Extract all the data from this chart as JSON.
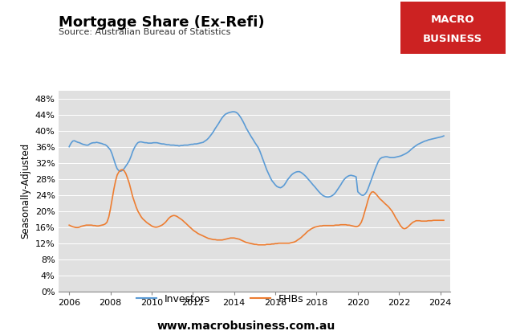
{
  "title": "Mortgage Share (Ex-Refi)",
  "source": "Source: Australian Bureau of Statistics",
  "ylabel": "Seasonally-Adjusted",
  "website": "www.macrobusiness.com.au",
  "xlim": [
    2005.5,
    2024.5
  ],
  "ylim": [
    0,
    0.5
  ],
  "yticks": [
    0,
    0.04,
    0.08,
    0.12,
    0.16,
    0.2,
    0.24,
    0.28,
    0.32,
    0.36,
    0.4,
    0.44,
    0.48
  ],
  "xticks": [
    2006,
    2008,
    2010,
    2012,
    2014,
    2016,
    2018,
    2020,
    2022,
    2024
  ],
  "investor_color": "#5B9BD5",
  "fhb_color": "#ED7D31",
  "background_color": "#E0E0E0",
  "macro_bg": "#CC2222",
  "investors": {
    "dates": [
      2006.0,
      2006.08,
      2006.17,
      2006.25,
      2006.33,
      2006.42,
      2006.5,
      2006.58,
      2006.67,
      2006.75,
      2006.83,
      2006.92,
      2007.0,
      2007.08,
      2007.17,
      2007.25,
      2007.33,
      2007.42,
      2007.5,
      2007.58,
      2007.67,
      2007.75,
      2007.83,
      2007.92,
      2008.0,
      2008.08,
      2008.17,
      2008.25,
      2008.33,
      2008.42,
      2008.5,
      2008.58,
      2008.67,
      2008.75,
      2008.83,
      2008.92,
      2009.0,
      2009.08,
      2009.17,
      2009.25,
      2009.33,
      2009.42,
      2009.5,
      2009.58,
      2009.67,
      2009.75,
      2009.83,
      2009.92,
      2010.0,
      2010.08,
      2010.17,
      2010.25,
      2010.33,
      2010.42,
      2010.5,
      2010.58,
      2010.67,
      2010.75,
      2010.83,
      2010.92,
      2011.0,
      2011.08,
      2011.17,
      2011.25,
      2011.33,
      2011.42,
      2011.5,
      2011.58,
      2011.67,
      2011.75,
      2011.83,
      2011.92,
      2012.0,
      2012.08,
      2012.17,
      2012.25,
      2012.33,
      2012.42,
      2012.5,
      2012.58,
      2012.67,
      2012.75,
      2012.83,
      2012.92,
      2013.0,
      2013.08,
      2013.17,
      2013.25,
      2013.33,
      2013.42,
      2013.5,
      2013.58,
      2013.67,
      2013.75,
      2013.83,
      2013.92,
      2014.0,
      2014.08,
      2014.17,
      2014.25,
      2014.33,
      2014.42,
      2014.5,
      2014.58,
      2014.67,
      2014.75,
      2014.83,
      2014.92,
      2015.0,
      2015.08,
      2015.17,
      2015.25,
      2015.33,
      2015.42,
      2015.5,
      2015.58,
      2015.67,
      2015.75,
      2015.83,
      2015.92,
      2016.0,
      2016.08,
      2016.17,
      2016.25,
      2016.33,
      2016.42,
      2016.5,
      2016.58,
      2016.67,
      2016.75,
      2016.83,
      2016.92,
      2017.0,
      2017.08,
      2017.17,
      2017.25,
      2017.33,
      2017.42,
      2017.5,
      2017.58,
      2017.67,
      2017.75,
      2017.83,
      2017.92,
      2018.0,
      2018.08,
      2018.17,
      2018.25,
      2018.33,
      2018.42,
      2018.5,
      2018.58,
      2018.67,
      2018.75,
      2018.83,
      2018.92,
      2019.0,
      2019.08,
      2019.17,
      2019.25,
      2019.33,
      2019.42,
      2019.5,
      2019.58,
      2019.67,
      2019.75,
      2019.83,
      2019.92,
      2020.0,
      2020.08,
      2020.17,
      2020.25,
      2020.33,
      2020.42,
      2020.5,
      2020.58,
      2020.67,
      2020.75,
      2020.83,
      2020.92,
      2021.0,
      2021.08,
      2021.17,
      2021.25,
      2021.33,
      2021.42,
      2021.5,
      2021.58,
      2021.67,
      2021.75,
      2021.83,
      2021.92,
      2022.0,
      2022.08,
      2022.17,
      2022.25,
      2022.33,
      2022.42,
      2022.5,
      2022.58,
      2022.67,
      2022.75,
      2022.83,
      2022.92,
      2023.0,
      2023.08,
      2023.17,
      2023.25,
      2023.33,
      2023.42,
      2023.5,
      2023.58,
      2023.67,
      2023.75,
      2023.83,
      2023.92,
      2024.0,
      2024.08,
      2024.17
    ],
    "values": [
      0.36,
      0.368,
      0.374,
      0.375,
      0.373,
      0.371,
      0.37,
      0.368,
      0.366,
      0.365,
      0.364,
      0.364,
      0.367,
      0.369,
      0.37,
      0.37,
      0.371,
      0.37,
      0.369,
      0.368,
      0.366,
      0.365,
      0.362,
      0.357,
      0.352,
      0.342,
      0.328,
      0.315,
      0.305,
      0.3,
      0.299,
      0.301,
      0.306,
      0.312,
      0.318,
      0.326,
      0.336,
      0.348,
      0.358,
      0.365,
      0.37,
      0.372,
      0.372,
      0.371,
      0.37,
      0.37,
      0.369,
      0.369,
      0.369,
      0.37,
      0.37,
      0.37,
      0.369,
      0.368,
      0.367,
      0.367,
      0.366,
      0.365,
      0.365,
      0.364,
      0.364,
      0.364,
      0.363,
      0.363,
      0.362,
      0.363,
      0.363,
      0.364,
      0.364,
      0.364,
      0.365,
      0.366,
      0.366,
      0.367,
      0.367,
      0.368,
      0.369,
      0.37,
      0.371,
      0.374,
      0.377,
      0.381,
      0.386,
      0.392,
      0.398,
      0.405,
      0.412,
      0.418,
      0.425,
      0.432,
      0.437,
      0.441,
      0.443,
      0.445,
      0.446,
      0.447,
      0.447,
      0.446,
      0.443,
      0.438,
      0.432,
      0.424,
      0.416,
      0.407,
      0.399,
      0.392,
      0.385,
      0.378,
      0.371,
      0.365,
      0.358,
      0.349,
      0.338,
      0.326,
      0.314,
      0.303,
      0.293,
      0.284,
      0.276,
      0.27,
      0.265,
      0.261,
      0.259,
      0.258,
      0.26,
      0.264,
      0.27,
      0.277,
      0.283,
      0.288,
      0.292,
      0.295,
      0.297,
      0.298,
      0.298,
      0.296,
      0.293,
      0.289,
      0.285,
      0.28,
      0.275,
      0.27,
      0.265,
      0.26,
      0.255,
      0.25,
      0.245,
      0.241,
      0.238,
      0.236,
      0.235,
      0.235,
      0.236,
      0.238,
      0.241,
      0.246,
      0.252,
      0.258,
      0.265,
      0.272,
      0.278,
      0.283,
      0.286,
      0.288,
      0.289,
      0.288,
      0.287,
      0.285,
      0.248,
      0.244,
      0.24,
      0.239,
      0.241,
      0.247,
      0.256,
      0.267,
      0.279,
      0.291,
      0.303,
      0.314,
      0.324,
      0.33,
      0.333,
      0.334,
      0.335,
      0.335,
      0.334,
      0.333,
      0.333,
      0.333,
      0.334,
      0.335,
      0.336,
      0.337,
      0.339,
      0.341,
      0.343,
      0.346,
      0.349,
      0.353,
      0.357,
      0.36,
      0.363,
      0.366,
      0.368,
      0.37,
      0.372,
      0.374,
      0.375,
      0.377,
      0.378,
      0.379,
      0.38,
      0.381,
      0.382,
      0.383,
      0.384,
      0.385,
      0.387
    ]
  },
  "fhbs": {
    "dates": [
      2006.0,
      2006.08,
      2006.17,
      2006.25,
      2006.33,
      2006.42,
      2006.5,
      2006.58,
      2006.67,
      2006.75,
      2006.83,
      2006.92,
      2007.0,
      2007.08,
      2007.17,
      2007.25,
      2007.33,
      2007.42,
      2007.5,
      2007.58,
      2007.67,
      2007.75,
      2007.83,
      2007.92,
      2008.0,
      2008.08,
      2008.17,
      2008.25,
      2008.33,
      2008.42,
      2008.5,
      2008.58,
      2008.67,
      2008.75,
      2008.83,
      2008.92,
      2009.0,
      2009.08,
      2009.17,
      2009.25,
      2009.33,
      2009.42,
      2009.5,
      2009.58,
      2009.67,
      2009.75,
      2009.83,
      2009.92,
      2010.0,
      2010.08,
      2010.17,
      2010.25,
      2010.33,
      2010.42,
      2010.5,
      2010.58,
      2010.67,
      2010.75,
      2010.83,
      2010.92,
      2011.0,
      2011.08,
      2011.17,
      2011.25,
      2011.33,
      2011.42,
      2011.5,
      2011.58,
      2011.67,
      2011.75,
      2011.83,
      2011.92,
      2012.0,
      2012.08,
      2012.17,
      2012.25,
      2012.33,
      2012.42,
      2012.5,
      2012.58,
      2012.67,
      2012.75,
      2012.83,
      2012.92,
      2013.0,
      2013.08,
      2013.17,
      2013.25,
      2013.33,
      2013.42,
      2013.5,
      2013.58,
      2013.67,
      2013.75,
      2013.83,
      2013.92,
      2014.0,
      2014.08,
      2014.17,
      2014.25,
      2014.33,
      2014.42,
      2014.5,
      2014.58,
      2014.67,
      2014.75,
      2014.83,
      2014.92,
      2015.0,
      2015.08,
      2015.17,
      2015.25,
      2015.33,
      2015.42,
      2015.5,
      2015.58,
      2015.67,
      2015.75,
      2015.83,
      2015.92,
      2016.0,
      2016.08,
      2016.17,
      2016.25,
      2016.33,
      2016.42,
      2016.5,
      2016.58,
      2016.67,
      2016.75,
      2016.83,
      2016.92,
      2017.0,
      2017.08,
      2017.17,
      2017.25,
      2017.33,
      2017.42,
      2017.5,
      2017.58,
      2017.67,
      2017.75,
      2017.83,
      2017.92,
      2018.0,
      2018.08,
      2018.17,
      2018.25,
      2018.33,
      2018.42,
      2018.5,
      2018.58,
      2018.67,
      2018.75,
      2018.83,
      2018.92,
      2019.0,
      2019.08,
      2019.17,
      2019.25,
      2019.33,
      2019.42,
      2019.5,
      2019.58,
      2019.67,
      2019.75,
      2019.83,
      2019.92,
      2020.0,
      2020.08,
      2020.17,
      2020.25,
      2020.33,
      2020.42,
      2020.5,
      2020.58,
      2020.67,
      2020.75,
      2020.83,
      2020.92,
      2021.0,
      2021.08,
      2021.17,
      2021.25,
      2021.33,
      2021.42,
      2021.5,
      2021.58,
      2021.67,
      2021.75,
      2021.83,
      2021.92,
      2022.0,
      2022.08,
      2022.17,
      2022.25,
      2022.33,
      2022.42,
      2022.5,
      2022.58,
      2022.67,
      2022.75,
      2022.83,
      2022.92,
      2023.0,
      2023.08,
      2023.17,
      2023.25,
      2023.33,
      2023.42,
      2023.5,
      2023.58,
      2023.67,
      2023.75,
      2023.83,
      2023.92,
      2024.0,
      2024.08,
      2024.17
    ],
    "values": [
      0.165,
      0.163,
      0.161,
      0.16,
      0.159,
      0.159,
      0.16,
      0.162,
      0.163,
      0.164,
      0.165,
      0.165,
      0.165,
      0.165,
      0.164,
      0.164,
      0.163,
      0.163,
      0.164,
      0.165,
      0.166,
      0.168,
      0.172,
      0.185,
      0.205,
      0.228,
      0.255,
      0.275,
      0.29,
      0.298,
      0.302,
      0.303,
      0.3,
      0.293,
      0.282,
      0.268,
      0.252,
      0.236,
      0.222,
      0.21,
      0.2,
      0.192,
      0.185,
      0.18,
      0.176,
      0.172,
      0.169,
      0.166,
      0.163,
      0.161,
      0.16,
      0.16,
      0.161,
      0.163,
      0.165,
      0.168,
      0.172,
      0.177,
      0.182,
      0.186,
      0.188,
      0.189,
      0.188,
      0.186,
      0.183,
      0.18,
      0.177,
      0.173,
      0.169,
      0.165,
      0.161,
      0.157,
      0.153,
      0.15,
      0.147,
      0.144,
      0.142,
      0.14,
      0.138,
      0.136,
      0.134,
      0.132,
      0.131,
      0.13,
      0.129,
      0.129,
      0.128,
      0.128,
      0.128,
      0.128,
      0.129,
      0.13,
      0.131,
      0.132,
      0.133,
      0.133,
      0.133,
      0.132,
      0.131,
      0.13,
      0.128,
      0.126,
      0.124,
      0.122,
      0.121,
      0.12,
      0.119,
      0.118,
      0.117,
      0.117,
      0.116,
      0.116,
      0.116,
      0.116,
      0.116,
      0.117,
      0.117,
      0.117,
      0.118,
      0.118,
      0.119,
      0.119,
      0.12,
      0.12,
      0.12,
      0.12,
      0.12,
      0.12,
      0.12,
      0.121,
      0.122,
      0.123,
      0.125,
      0.128,
      0.131,
      0.134,
      0.138,
      0.142,
      0.146,
      0.15,
      0.153,
      0.156,
      0.158,
      0.16,
      0.161,
      0.162,
      0.163,
      0.163,
      0.164,
      0.164,
      0.164,
      0.164,
      0.164,
      0.164,
      0.164,
      0.165,
      0.165,
      0.165,
      0.166,
      0.166,
      0.166,
      0.166,
      0.165,
      0.165,
      0.164,
      0.163,
      0.162,
      0.161,
      0.162,
      0.165,
      0.172,
      0.183,
      0.197,
      0.213,
      0.228,
      0.24,
      0.247,
      0.248,
      0.245,
      0.24,
      0.235,
      0.23,
      0.226,
      0.222,
      0.218,
      0.214,
      0.21,
      0.205,
      0.199,
      0.192,
      0.184,
      0.177,
      0.17,
      0.163,
      0.158,
      0.156,
      0.157,
      0.16,
      0.164,
      0.168,
      0.172,
      0.174,
      0.176,
      0.176,
      0.176,
      0.175,
      0.175,
      0.175,
      0.175,
      0.176,
      0.176,
      0.176,
      0.177,
      0.177,
      0.177,
      0.177,
      0.177,
      0.177,
      0.177
    ]
  }
}
